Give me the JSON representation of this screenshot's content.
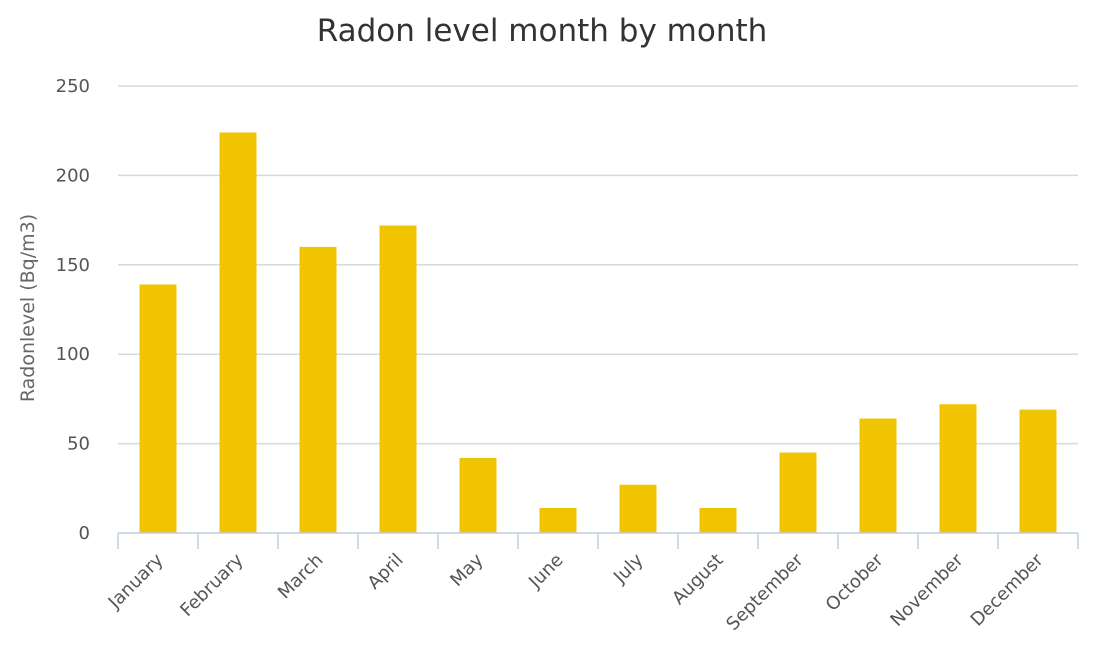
{
  "chart_data": {
    "type": "bar",
    "title": "Radon level month by month",
    "xlabel": "",
    "ylabel": "Radonlevel (Bq/m3)",
    "categories": [
      "January",
      "February",
      "March",
      "April",
      "May",
      "June",
      "July",
      "August",
      "September",
      "October",
      "November",
      "December"
    ],
    "values": [
      139,
      224,
      160,
      172,
      42,
      14,
      27,
      14,
      45,
      64,
      72,
      69
    ],
    "ylim": [
      0,
      250
    ],
    "yticks": [
      0,
      50,
      100,
      150,
      200,
      250
    ],
    "grid": true,
    "bar_color": "#f0c400"
  }
}
